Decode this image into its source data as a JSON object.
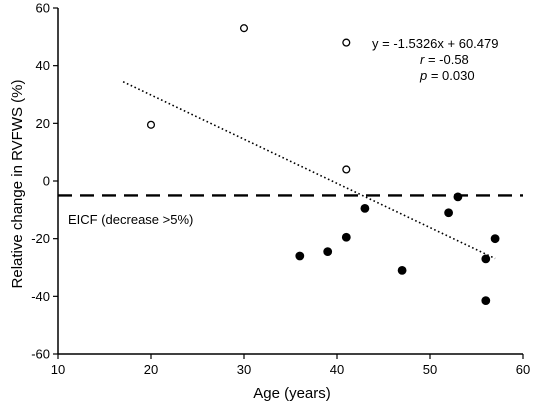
{
  "chart_data": {
    "type": "scatter",
    "title": "",
    "xlabel": "Age (years)",
    "ylabel": "Relative change in RVFWS (%)",
    "xlim": [
      10,
      60
    ],
    "ylim": [
      -60,
      60
    ],
    "xticks": [
      10,
      20,
      30,
      40,
      50,
      60
    ],
    "yticks": [
      -60,
      -40,
      -20,
      0,
      20,
      40,
      60
    ],
    "grid": false,
    "series": [
      {
        "marker": "open-circle",
        "points": [
          {
            "x": 20,
            "y": 19.5
          },
          {
            "x": 30,
            "y": 53
          },
          {
            "x": 41,
            "y": 48
          },
          {
            "x": 41,
            "y": 4
          }
        ]
      },
      {
        "marker": "filled-circle",
        "points": [
          {
            "x": 36,
            "y": -26
          },
          {
            "x": 39,
            "y": -24.5
          },
          {
            "x": 41,
            "y": -19.5
          },
          {
            "x": 43,
            "y": -9.5
          },
          {
            "x": 47,
            "y": -31
          },
          {
            "x": 52,
            "y": -11
          },
          {
            "x": 53,
            "y": -5.5
          },
          {
            "x": 56,
            "y": -27
          },
          {
            "x": 56,
            "y": -41.5
          },
          {
            "x": 57,
            "y": -20
          }
        ]
      }
    ],
    "trendline": {
      "style": "dotted",
      "slope": -1.5326,
      "intercept": 60.479,
      "x_range": [
        17,
        57
      ]
    },
    "threshold_line": {
      "style": "dashed",
      "y": -5,
      "label": "EICF (decrease >5%)"
    },
    "annotations": {
      "equation": "y = -1.5326x + 60.479",
      "r": "r = -0.58",
      "p": "p = 0.030"
    }
  }
}
